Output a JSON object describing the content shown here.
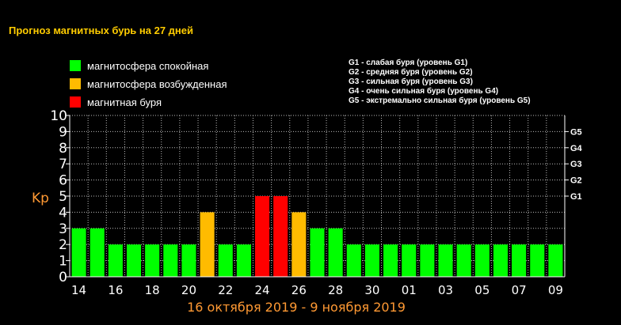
{
  "title": "Прогноз магнитных бурь на 27 дней",
  "legend": [
    {
      "label": "магнитосфера спокойная",
      "color": "#00ff00"
    },
    {
      "label": "магнитосфера возбужденная",
      "color": "#ffbb00"
    },
    {
      "label": "магнитная буря",
      "color": "#ff0000"
    }
  ],
  "g_levels": [
    "G1 - слабая буря (уровень G1)",
    "G2 - средняя буря (уровень G2)",
    "G3 - сильная буря (уровень G3)",
    "G4 - очень сильная буря (уровень G4)",
    "G5 - экстремально сильная буря (уровень G5)"
  ],
  "date_range": "16 октября 2019 - 9 ноября 2019",
  "chart_data": {
    "type": "bar",
    "title": "Прогноз магнитных бурь на 27 дней",
    "ylabel": "Kp",
    "xlabel": "16 октября 2019 - 9 ноября 2019",
    "ylim": [
      0,
      10
    ],
    "yticks": [
      "0",
      "1",
      "2",
      "3",
      "4",
      "5",
      "6",
      "7",
      "8",
      "9",
      "10"
    ],
    "right_ticks": [
      {
        "value": 5,
        "label": "G1"
      },
      {
        "value": 6,
        "label": "G2"
      },
      {
        "value": 7,
        "label": "G3"
      },
      {
        "value": 8,
        "label": "G4"
      },
      {
        "value": 9,
        "label": "G5"
      }
    ],
    "x_tick_labels": [
      "14",
      "16",
      "18",
      "20",
      "22",
      "24",
      "26",
      "28",
      "30",
      "01",
      "03",
      "05",
      "07",
      "09"
    ],
    "grid": true,
    "values": [
      3,
      3,
      2,
      2,
      2,
      2,
      2,
      4,
      2,
      2,
      5,
      5,
      4,
      3,
      3,
      2,
      2,
      2,
      2,
      2,
      2,
      2,
      2,
      2,
      2,
      2,
      2
    ],
    "colors": [
      "#00ff00",
      "#00ff00",
      "#00ff00",
      "#00ff00",
      "#00ff00",
      "#00ff00",
      "#00ff00",
      "#ffbb00",
      "#00ff00",
      "#00ff00",
      "#ff0000",
      "#ff0000",
      "#ffbb00",
      "#00ff00",
      "#00ff00",
      "#00ff00",
      "#00ff00",
      "#00ff00",
      "#00ff00",
      "#00ff00",
      "#00ff00",
      "#00ff00",
      "#00ff00",
      "#00ff00",
      "#00ff00",
      "#00ff00",
      "#00ff00"
    ]
  }
}
